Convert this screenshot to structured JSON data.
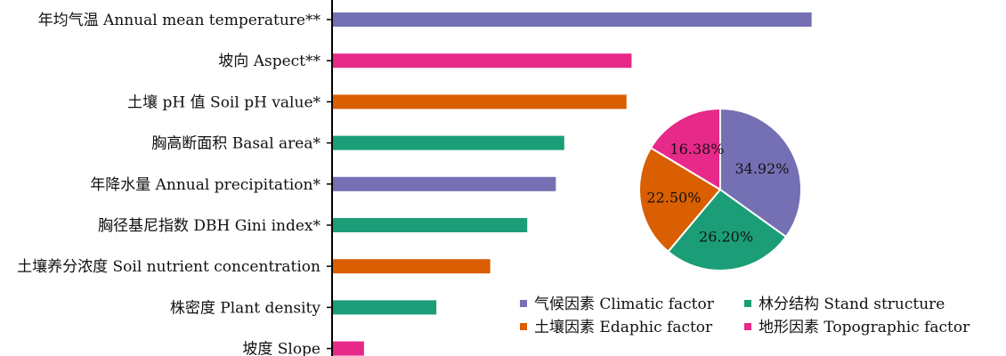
{
  "chart_data": [
    {
      "type": "bar",
      "orientation": "horizontal",
      "categories": [
        "年均气温 Annual mean temperature**",
        "坡向 Aspect**",
        "土壤 pH 值 Soil pH value*",
        "胸高断面积 Basal area*",
        "年降水量 Annual precipitation*",
        "胸径基尼指数 DBH Gini index*",
        "土壤养分浓度 Soil nutrient concentration",
        "株密度 Plant  density",
        "坡度 Slope"
      ],
      "values": [
        28.5,
        17.8,
        17.5,
        13.8,
        13.3,
        11.6,
        9.4,
        6.2,
        1.9
      ],
      "factor_groups": [
        "Climatic",
        "Topographic",
        "Edaphic",
        "Stand",
        "Climatic",
        "Stand",
        "Edaphic",
        "Stand",
        "Topographic"
      ],
      "xlim": [
        0,
        30
      ],
      "grid": false
    },
    {
      "type": "pie",
      "labels": [
        "34.92%",
        "26.20%",
        "22.50%",
        "16.38%"
      ],
      "values": [
        34.92,
        26.2,
        22.5,
        16.38
      ],
      "factor_groups": [
        "Climatic",
        "Stand",
        "Edaphic",
        "Topographic"
      ]
    }
  ],
  "legend": {
    "placement": "bottom-right",
    "entries": [
      {
        "key": "Climatic",
        "label": "气候因素 Climatic factor"
      },
      {
        "key": "Stand",
        "label": "林分结构 Stand structure"
      },
      {
        "key": "Edaphic",
        "label": "土壤因素 Edaphic factor"
      },
      {
        "key": "Topographic",
        "label": "地形因素 Topographic factor"
      }
    ]
  },
  "colors": {
    "Climatic": "#7570b3",
    "Stand": "#1b9e77",
    "Edaphic": "#d95f02",
    "Topographic": "#e7298a",
    "axis": "#000000"
  }
}
